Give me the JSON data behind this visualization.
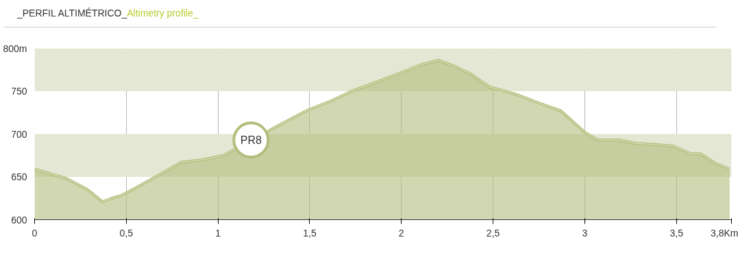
{
  "chart_data": {
    "type": "area",
    "title": "_PERFIL ALTIMÉTRICO_",
    "subtitle": "Altimetry profile_",
    "x": [
      0,
      0.175,
      0.29,
      0.37,
      0.42,
      0.47,
      0.55,
      0.66,
      0.8,
      0.92,
      1.03,
      1.33,
      1.49,
      1.62,
      1.73,
      1.82,
      1.99,
      2.11,
      2.2,
      2.29,
      2.37,
      2.48,
      2.63,
      2.74,
      2.87,
      3.0,
      3.07,
      3.19,
      3.28,
      3.37,
      3.48,
      3.58,
      3.63,
      3.71,
      3.79
    ],
    "series": [
      {
        "color": "#b3bd7c",
        "values": [
          659,
          648,
          635,
          621,
          625,
          628,
          637,
          650,
          667,
          670,
          675,
          710,
          728,
          739,
          750,
          757,
          771,
          781,
          786,
          779,
          771,
          755,
          746,
          737,
          727,
          702,
          693,
          693,
          689,
          688,
          686,
          677,
          677,
          666,
          659
        ]
      }
    ],
    "xlim": [
      0,
      3.8
    ],
    "ylim": [
      600,
      800
    ],
    "xticks": [
      0,
      {
        "value": 0.5,
        "label": "0,5"
      },
      1,
      {
        "value": 1.5,
        "label": "1,5"
      },
      2,
      {
        "value": 2.5,
        "label": "2,5"
      },
      3,
      {
        "value": 3.5,
        "label": "3,5"
      },
      {
        "value": 3.8,
        "label": "3,8Km"
      }
    ],
    "yticks": [
      600,
      650,
      700,
      750,
      {
        "value": 800,
        "label": "800m"
      }
    ],
    "grid": "x",
    "bands": [
      {
        "axis": "y",
        "from": 650,
        "to": 700,
        "color": "#e4e7d3"
      },
      {
        "axis": "y",
        "from": 750,
        "to": 800,
        "color": "#e4e7d3"
      }
    ],
    "annotations": [
      {
        "text": "PR8",
        "x": 1.18,
        "y": 693
      }
    ]
  }
}
